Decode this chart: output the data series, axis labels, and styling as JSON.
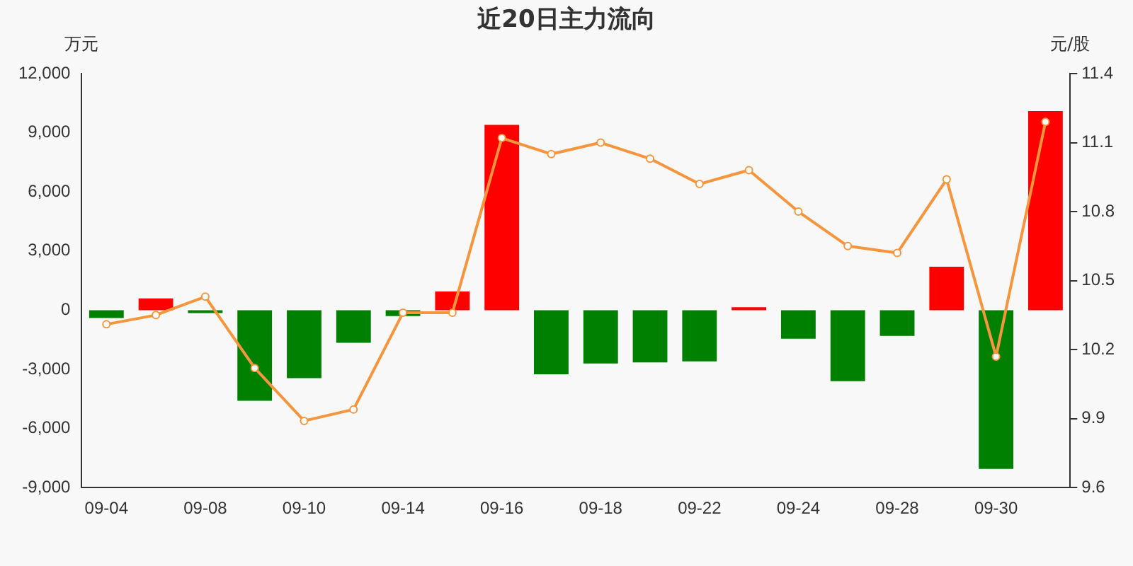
{
  "chart_data": {
    "type": "bar",
    "title": "近20日主力流向",
    "ylabel": "万元",
    "y2label": "元/股",
    "categories": [
      "09-04",
      null,
      "09-08",
      null,
      "09-10",
      null,
      "09-14",
      null,
      "09-16",
      null,
      "09-18",
      null,
      "09-22",
      null,
      "09-24",
      null,
      "09-28",
      null,
      "09-30",
      null
    ],
    "series": [
      {
        "colors": [
          "#008000",
          "#ff0000",
          "#008000",
          "#008000",
          "#008000",
          "#008000",
          "#008000",
          "#ff0000",
          "#ff0000",
          "#008000",
          "#008000",
          "#008000",
          "#008000",
          "#ff0000",
          "#008000",
          "#008000",
          "#008000",
          "#ff0000",
          "#008000",
          "#ff0000"
        ],
        "values": [
          -400,
          600,
          -150,
          -4600,
          -3450,
          -1650,
          -300,
          950,
          9400,
          -3250,
          -2700,
          -2650,
          -2600,
          150,
          -1450,
          -3600,
          -1300,
          2200,
          -8050,
          10100
        ]
      },
      {
        "type": "line",
        "axis": "y2",
        "color": "#f7953c",
        "marker": "circle",
        "values": [
          10.31,
          10.35,
          10.43,
          10.12,
          9.89,
          9.94,
          10.36,
          10.36,
          11.12,
          11.05,
          11.1,
          11.03,
          10.92,
          10.98,
          10.8,
          10.65,
          10.62,
          10.94,
          10.17,
          11.19
        ]
      }
    ],
    "ylim": [
      -9000,
      12000
    ],
    "yticks": [
      {
        "value": -9000,
        "label": "-9,000"
      },
      {
        "value": -6000,
        "label": "-6,000"
      },
      {
        "value": -3000,
        "label": "-3,000"
      },
      0,
      {
        "value": 3000,
        "label": "3,000"
      },
      {
        "value": 6000,
        "label": "6,000"
      },
      {
        "value": 9000,
        "label": "9,000"
      },
      {
        "value": 12000,
        "label": "12,000"
      }
    ],
    "y2lim": [
      9.6,
      11.4
    ],
    "y2ticks": [
      9.6,
      9.9,
      10.2,
      10.5,
      10.8,
      11.1,
      11.4
    ],
    "grid": false,
    "legend": false
  }
}
